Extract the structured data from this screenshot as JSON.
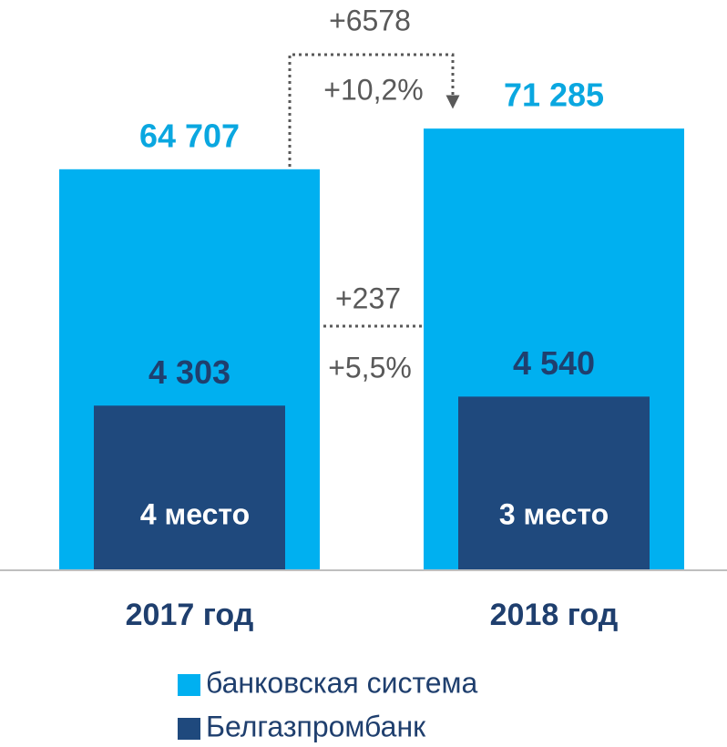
{
  "chart_data": {
    "type": "bar",
    "categories": [
      "2017 год",
      "2018 год"
    ],
    "series": [
      {
        "name": "банковская система",
        "color": "#00b0f0",
        "values": [
          64707,
          71285
        ],
        "value_labels": [
          "64 707",
          "71 285"
        ]
      },
      {
        "name": "Белгазпромбанк",
        "color": "#1f497d",
        "values": [
          4303,
          4540
        ],
        "value_labels": [
          "4 303",
          "4 540"
        ],
        "axis": "y2"
      }
    ],
    "ylim": [
      0,
      80000
    ],
    "y2lim": [
      0,
      13000
    ],
    "annotations": [
      "+6578",
      "+10,2%",
      "+237",
      "+5,5%",
      "4 место",
      "3 место"
    ]
  }
}
